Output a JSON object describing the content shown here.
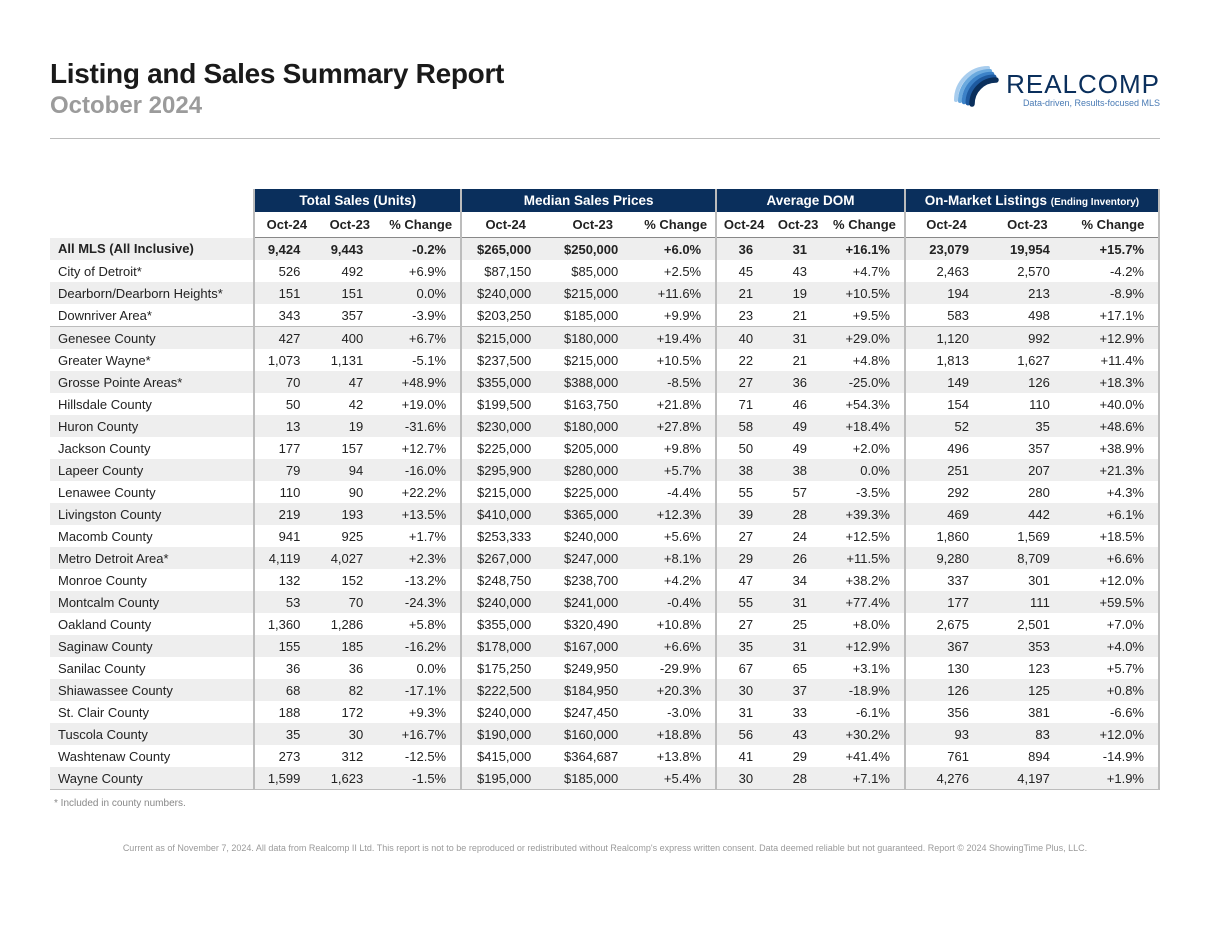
{
  "report": {
    "title": "Listing and Sales Summary Report",
    "subtitle": "October 2024"
  },
  "logo": {
    "name": "REALCOMP",
    "tagline": "Data-driven, Results-focused MLS",
    "swoosh_colors": [
      "#0a2f5c",
      "#1e5aa0",
      "#3c82c8",
      "#6aa9de",
      "#a8cdee"
    ]
  },
  "table": {
    "groups": [
      {
        "label": "Total Sales (Units)",
        "small": ""
      },
      {
        "label": "Median Sales Prices",
        "small": ""
      },
      {
        "label": "Average DOM",
        "small": ""
      },
      {
        "label": "On-Market Listings",
        "small": "(Ending Inventory)"
      }
    ],
    "subheaders": [
      "Oct-24",
      "Oct-23",
      "% Change"
    ],
    "rows": [
      {
        "label": "All MLS (All Inclusive)",
        "bold": true,
        "break": false,
        "cells": [
          "9,424",
          "9,443",
          "-0.2%",
          "$265,000",
          "$250,000",
          "+6.0%",
          "36",
          "31",
          "+16.1%",
          "23,079",
          "19,954",
          "+15.7%"
        ]
      },
      {
        "label": "City of Detroit*",
        "bold": false,
        "break": false,
        "cells": [
          "526",
          "492",
          "+6.9%",
          "$87,150",
          "$85,000",
          "+2.5%",
          "45",
          "43",
          "+4.7%",
          "2,463",
          "2,570",
          "-4.2%"
        ]
      },
      {
        "label": "Dearborn/Dearborn Heights*",
        "bold": false,
        "break": false,
        "cells": [
          "151",
          "151",
          "0.0%",
          "$240,000",
          "$215,000",
          "+11.6%",
          "21",
          "19",
          "+10.5%",
          "194",
          "213",
          "-8.9%"
        ]
      },
      {
        "label": "Downriver Area*",
        "bold": false,
        "break": false,
        "cells": [
          "343",
          "357",
          "-3.9%",
          "$203,250",
          "$185,000",
          "+9.9%",
          "23",
          "21",
          "+9.5%",
          "583",
          "498",
          "+17.1%"
        ]
      },
      {
        "label": "Genesee County",
        "bold": false,
        "break": true,
        "cells": [
          "427",
          "400",
          "+6.7%",
          "$215,000",
          "$180,000",
          "+19.4%",
          "40",
          "31",
          "+29.0%",
          "1,120",
          "992",
          "+12.9%"
        ]
      },
      {
        "label": "Greater Wayne*",
        "bold": false,
        "break": false,
        "cells": [
          "1,073",
          "1,131",
          "-5.1%",
          "$237,500",
          "$215,000",
          "+10.5%",
          "22",
          "21",
          "+4.8%",
          "1,813",
          "1,627",
          "+11.4%"
        ]
      },
      {
        "label": "Grosse Pointe Areas*",
        "bold": false,
        "break": false,
        "cells": [
          "70",
          "47",
          "+48.9%",
          "$355,000",
          "$388,000",
          "-8.5%",
          "27",
          "36",
          "-25.0%",
          "149",
          "126",
          "+18.3%"
        ]
      },
      {
        "label": "Hillsdale County",
        "bold": false,
        "break": false,
        "cells": [
          "50",
          "42",
          "+19.0%",
          "$199,500",
          "$163,750",
          "+21.8%",
          "71",
          "46",
          "+54.3%",
          "154",
          "110",
          "+40.0%"
        ]
      },
      {
        "label": "Huron County",
        "bold": false,
        "break": false,
        "cells": [
          "13",
          "19",
          "-31.6%",
          "$230,000",
          "$180,000",
          "+27.8%",
          "58",
          "49",
          "+18.4%",
          "52",
          "35",
          "+48.6%"
        ]
      },
      {
        "label": "Jackson County",
        "bold": false,
        "break": false,
        "cells": [
          "177",
          "157",
          "+12.7%",
          "$225,000",
          "$205,000",
          "+9.8%",
          "50",
          "49",
          "+2.0%",
          "496",
          "357",
          "+38.9%"
        ]
      },
      {
        "label": "Lapeer County",
        "bold": false,
        "break": false,
        "cells": [
          "79",
          "94",
          "-16.0%",
          "$295,900",
          "$280,000",
          "+5.7%",
          "38",
          "38",
          "0.0%",
          "251",
          "207",
          "+21.3%"
        ]
      },
      {
        "label": "Lenawee County",
        "bold": false,
        "break": false,
        "cells": [
          "110",
          "90",
          "+22.2%",
          "$215,000",
          "$225,000",
          "-4.4%",
          "55",
          "57",
          "-3.5%",
          "292",
          "280",
          "+4.3%"
        ]
      },
      {
        "label": "Livingston County",
        "bold": false,
        "break": false,
        "cells": [
          "219",
          "193",
          "+13.5%",
          "$410,000",
          "$365,000",
          "+12.3%",
          "39",
          "28",
          "+39.3%",
          "469",
          "442",
          "+6.1%"
        ]
      },
      {
        "label": "Macomb County",
        "bold": false,
        "break": false,
        "cells": [
          "941",
          "925",
          "+1.7%",
          "$253,333",
          "$240,000",
          "+5.6%",
          "27",
          "24",
          "+12.5%",
          "1,860",
          "1,569",
          "+18.5%"
        ]
      },
      {
        "label": "Metro Detroit Area*",
        "bold": false,
        "break": false,
        "cells": [
          "4,119",
          "4,027",
          "+2.3%",
          "$267,000",
          "$247,000",
          "+8.1%",
          "29",
          "26",
          "+11.5%",
          "9,280",
          "8,709",
          "+6.6%"
        ]
      },
      {
        "label": "Monroe County",
        "bold": false,
        "break": false,
        "cells": [
          "132",
          "152",
          "-13.2%",
          "$248,750",
          "$238,700",
          "+4.2%",
          "47",
          "34",
          "+38.2%",
          "337",
          "301",
          "+12.0%"
        ]
      },
      {
        "label": "Montcalm County",
        "bold": false,
        "break": false,
        "cells": [
          "53",
          "70",
          "-24.3%",
          "$240,000",
          "$241,000",
          "-0.4%",
          "55",
          "31",
          "+77.4%",
          "177",
          "111",
          "+59.5%"
        ]
      },
      {
        "label": "Oakland County",
        "bold": false,
        "break": false,
        "cells": [
          "1,360",
          "1,286",
          "+5.8%",
          "$355,000",
          "$320,490",
          "+10.8%",
          "27",
          "25",
          "+8.0%",
          "2,675",
          "2,501",
          "+7.0%"
        ]
      },
      {
        "label": "Saginaw County",
        "bold": false,
        "break": false,
        "cells": [
          "155",
          "185",
          "-16.2%",
          "$178,000",
          "$167,000",
          "+6.6%",
          "35",
          "31",
          "+12.9%",
          "367",
          "353",
          "+4.0%"
        ]
      },
      {
        "label": "Sanilac County",
        "bold": false,
        "break": false,
        "cells": [
          "36",
          "36",
          "0.0%",
          "$175,250",
          "$249,950",
          "-29.9%",
          "67",
          "65",
          "+3.1%",
          "130",
          "123",
          "+5.7%"
        ]
      },
      {
        "label": "Shiawassee County",
        "bold": false,
        "break": false,
        "cells": [
          "68",
          "82",
          "-17.1%",
          "$222,500",
          "$184,950",
          "+20.3%",
          "30",
          "37",
          "-18.9%",
          "126",
          "125",
          "+0.8%"
        ]
      },
      {
        "label": "St. Clair County",
        "bold": false,
        "break": false,
        "cells": [
          "188",
          "172",
          "+9.3%",
          "$240,000",
          "$247,450",
          "-3.0%",
          "31",
          "33",
          "-6.1%",
          "356",
          "381",
          "-6.6%"
        ]
      },
      {
        "label": "Tuscola County",
        "bold": false,
        "break": false,
        "cells": [
          "35",
          "30",
          "+16.7%",
          "$190,000",
          "$160,000",
          "+18.8%",
          "56",
          "43",
          "+30.2%",
          "93",
          "83",
          "+12.0%"
        ]
      },
      {
        "label": "Washtenaw County",
        "bold": false,
        "break": false,
        "cells": [
          "273",
          "312",
          "-12.5%",
          "$415,000",
          "$364,687",
          "+13.8%",
          "41",
          "29",
          "+41.4%",
          "761",
          "894",
          "-14.9%"
        ]
      },
      {
        "label": "Wayne County",
        "bold": false,
        "break": false,
        "cells": [
          "1,599",
          "1,623",
          "-1.5%",
          "$195,000",
          "$185,000",
          "+5.4%",
          "30",
          "28",
          "+7.1%",
          "4,276",
          "4,197",
          "+1.9%"
        ]
      }
    ]
  },
  "footnote": "* Included in county numbers.",
  "disclaimer": "Current as of November 7, 2024. All data from Realcomp II Ltd. This report is not to be reproduced or redistributed without Realcomp's express written consent. Data deemed reliable but not guaranteed. Report © 2024 ShowingTime Plus, LLC."
}
